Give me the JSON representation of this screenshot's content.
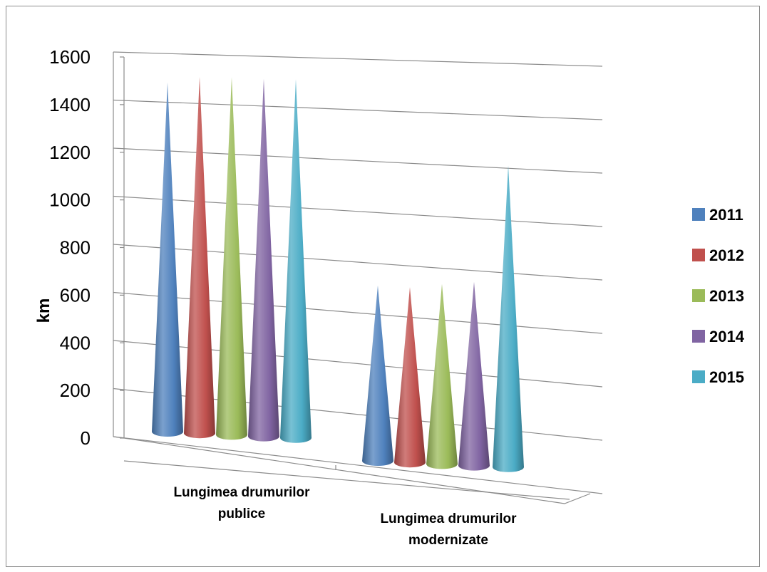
{
  "chart_data": {
    "type": "bar",
    "subtype": "3d-cone",
    "categories": [
      "Lungimea drumurilor publice",
      "Lungimea drumurilor modernizate"
    ],
    "category_lines": [
      [
        "Lungimea drumurilor",
        "publice"
      ],
      [
        "Lungimea drumurilor",
        "modernizate"
      ]
    ],
    "series": [
      {
        "name": "2011",
        "color": "#4f81bd",
        "values": [
          1490,
          760
        ]
      },
      {
        "name": "2012",
        "color": "#c0504d",
        "values": [
          1520,
          760
        ]
      },
      {
        "name": "2013",
        "color": "#9bbb59",
        "values": [
          1525,
          780
        ]
      },
      {
        "name": "2014",
        "color": "#8064a2",
        "values": [
          1525,
          795
        ]
      },
      {
        "name": "2015",
        "color": "#4bacc6",
        "values": [
          1530,
          1290
        ]
      }
    ],
    "ylabel": "km",
    "ylim": [
      0,
      1600
    ],
    "yticks": [
      0,
      200,
      400,
      600,
      800,
      1000,
      1200,
      1400,
      1600
    ],
    "grid": true,
    "legend": "right"
  }
}
